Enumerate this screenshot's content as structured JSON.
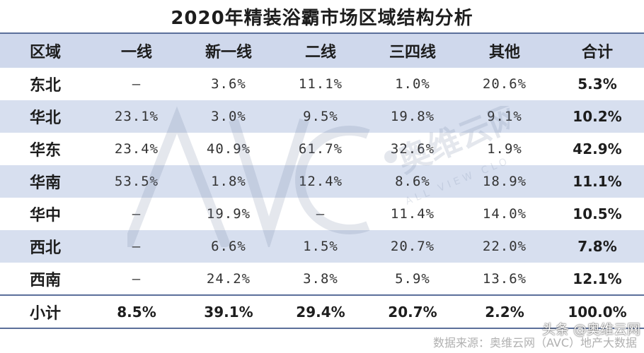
{
  "title": "2020年精装浴霸市场区域结构分析",
  "columns": [
    "区域",
    "一线",
    "新一线",
    "二线",
    "三四线",
    "其他",
    "合计"
  ],
  "rows": [
    {
      "region": "东北",
      "values": [
        "–",
        "3.6%",
        "11.1%",
        "1.0%",
        "20.6%",
        "5.3%"
      ]
    },
    {
      "region": "华北",
      "values": [
        "23.1%",
        "3.0%",
        "9.5%",
        "19.8%",
        "9.1%",
        "10.2%"
      ]
    },
    {
      "region": "华东",
      "values": [
        "23.4%",
        "40.9%",
        "61.7%",
        "32.6%",
        "1.9%",
        "42.9%"
      ]
    },
    {
      "region": "华南",
      "values": [
        "53.5%",
        "1.8%",
        "12.4%",
        "8.6%",
        "18.9%",
        "11.1%"
      ]
    },
    {
      "region": "华中",
      "values": [
        "–",
        "19.9%",
        "–",
        "11.4%",
        "14.0%",
        "10.5%"
      ]
    },
    {
      "region": "西北",
      "values": [
        "–",
        "6.6%",
        "1.5%",
        "20.7%",
        "22.0%",
        "7.8%"
      ]
    },
    {
      "region": "西南",
      "values": [
        "–",
        "24.2%",
        "3.8%",
        "5.9%",
        "13.6%",
        "12.1%"
      ]
    }
  ],
  "total": {
    "region": "小计",
    "values": [
      "8.5%",
      "39.1%",
      "29.4%",
      "20.7%",
      "2.2%",
      "100.0%"
    ]
  },
  "watermark": {
    "brand": "奥维云网",
    "letters": "AVC",
    "tagline": "ALL VIEW CLOUD"
  },
  "source": "数据来源：奥维云网（AVC）地产大数据",
  "credit": "头条 @奥维云网",
  "colors": {
    "header_bg": "#cfd8ec",
    "alt_row_bg": "#d7dfef",
    "rule": "#5b6f9a"
  }
}
